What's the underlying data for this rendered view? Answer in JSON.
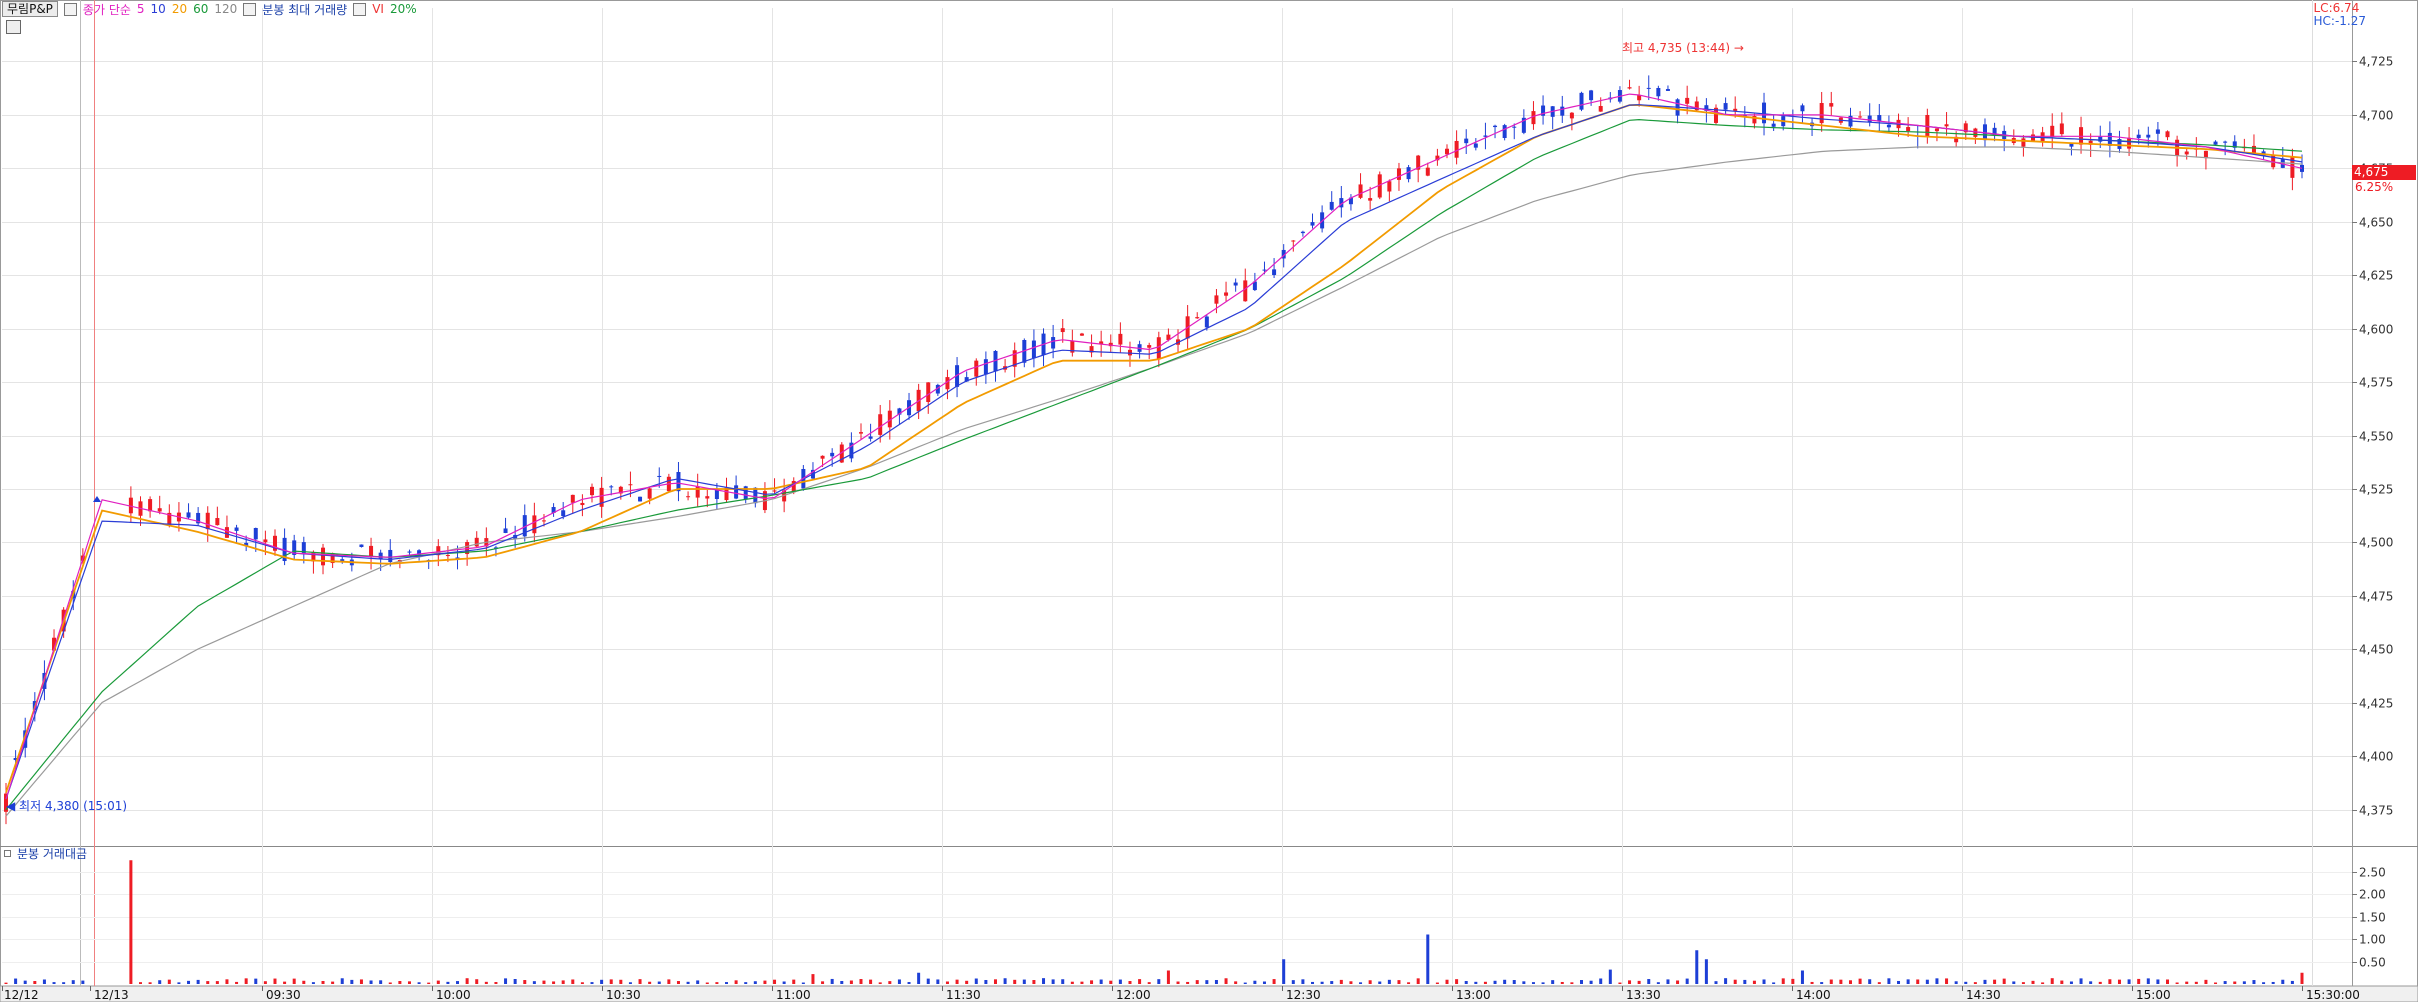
{
  "header": {
    "stock_name": "무림P&P",
    "ma_label": "종가 단순",
    "ma_periods": [
      "5",
      "10",
      "20",
      "60",
      "120"
    ],
    "ma_colors": [
      "#e020c0",
      "#2a3dd6",
      "#f29b00",
      "#1a9a3a",
      "#9a9a9a"
    ],
    "volume_label": "분봉 최대 거래량",
    "vi_label": "VI",
    "vi_value": "20%"
  },
  "right_info": {
    "lc": "LC:6.74",
    "hc": "HC:-1.27"
  },
  "current": {
    "price": "4,675",
    "change": "6.25%"
  },
  "annotations": {
    "high": "최고 4,735 (13:44)",
    "low": "최저 4,380 (15:01)"
  },
  "volume_panel": {
    "title": "분봉 거래대금",
    "y_ticks": [
      "2.50",
      "2.00",
      "1.50",
      "1.00",
      "0.50"
    ]
  },
  "chart_data": {
    "type": "candlestick",
    "y_axis": {
      "ticks": [
        4375,
        4400,
        4425,
        4450,
        4475,
        4500,
        4525,
        4550,
        4575,
        4600,
        4625,
        4650,
        4675,
        4700,
        4725
      ],
      "tick_labels": [
        "4,375",
        "4,400",
        "4,425",
        "4,450",
        "4,475",
        "4,500",
        "4,525",
        "4,550",
        "4,575",
        "4,600",
        "4,625",
        "4,650",
        "4,675",
        "4,700",
        "4,725"
      ],
      "range": [
        4358,
        4750
      ]
    },
    "x_axis": {
      "labels": [
        "12/12",
        "12/13",
        "09:30",
        "10:00",
        "10:30",
        "11:00",
        "11:30",
        "12:00",
        "12:30",
        "13:00",
        "13:30",
        "14:00",
        "14:30",
        "15:00",
        "15:30:00"
      ]
    },
    "ma_anchor": {
      "ma5": [
        4380,
        4520,
        4510,
        4495,
        4493,
        4498,
        4520,
        4528,
        4520,
        4550,
        4580,
        4595,
        4590,
        4620,
        4660,
        4680,
        4700,
        4710,
        4700,
        4700,
        4695,
        4690,
        4690,
        4685,
        4675
      ],
      "ma10": [
        4380,
        4510,
        4508,
        4495,
        4492,
        4497,
        4515,
        4530,
        4522,
        4545,
        4575,
        4590,
        4588,
        4610,
        4650,
        4670,
        4690,
        4705,
        4702,
        4698,
        4695,
        4690,
        4688,
        4685,
        4678
      ],
      "ma20": [
        4383,
        4515,
        4505,
        4492,
        4490,
        4493,
        4505,
        4525,
        4525,
        4535,
        4565,
        4585,
        4585,
        4600,
        4630,
        4665,
        4690,
        4705,
        4700,
        4695,
        4690,
        4688,
        4686,
        4684,
        4680
      ],
      "ma60": [
        4375,
        4430,
        4470,
        4496,
        4493,
        4496,
        4505,
        4515,
        4522,
        4530,
        4548,
        4565,
        4582,
        4600,
        4624,
        4654,
        4680,
        4698,
        4695,
        4693,
        4692,
        4690,
        4688,
        4686,
        4683
      ],
      "ma120": [
        4372,
        4425,
        4450,
        4470,
        4490,
        4500,
        4505,
        4512,
        4520,
        4535,
        4553,
        4567,
        4582,
        4598,
        4620,
        4643,
        4660,
        4672,
        4678,
        4683,
        4685,
        4685,
        4683,
        4680,
        4677
      ]
    }
  }
}
